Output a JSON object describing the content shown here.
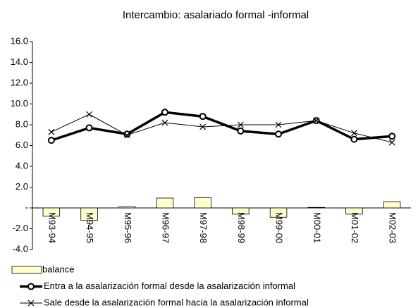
{
  "chart_data": {
    "type": "combo",
    "title": "Intercambio: asalariado formal -informal",
    "categories": [
      "M93-94",
      "M94-95",
      "M95-96",
      "M96-97",
      "M97-98",
      "M98-99",
      "M99-00",
      "M00-01",
      "M01-02",
      "M02-03"
    ],
    "series": [
      {
        "name": "balance",
        "type": "bar",
        "color": "#ffffcc",
        "values": [
          -0.8,
          -1.2,
          0.1,
          0.95,
          1.0,
          -0.6,
          -0.9,
          0.05,
          -0.6,
          0.6
        ]
      },
      {
        "name": "Entra a la asalarización formal desde la asalarización informal",
        "type": "line",
        "marker": "circle",
        "line_width": 3.5,
        "color": "#000000",
        "values": [
          6.5,
          7.7,
          7.1,
          9.2,
          8.8,
          7.4,
          7.1,
          8.4,
          6.6,
          6.9
        ]
      },
      {
        "name": "Sale desde la asalarización formal hacia la asalarización informal",
        "type": "line",
        "marker": "x",
        "line_width": 1,
        "color": "#000000",
        "values": [
          7.3,
          9.0,
          7.0,
          8.2,
          7.8,
          8.0,
          8.0,
          8.4,
          7.2,
          6.3
        ]
      }
    ],
    "ylim": [
      -4,
      16
    ],
    "yticks": [
      {
        "value": -4,
        "label": "-4.0"
      },
      {
        "value": -2,
        "label": "-2.0"
      },
      {
        "value": 0,
        "label": "-"
      },
      {
        "value": 2,
        "label": "2.0"
      },
      {
        "value": 4,
        "label": "4.0"
      },
      {
        "value": 6,
        "label": "6.0"
      },
      {
        "value": 8,
        "label": "8.0"
      },
      {
        "value": 10,
        "label": "10.0"
      },
      {
        "value": 12,
        "label": "12.0"
      },
      {
        "value": 14,
        "label": "14.0"
      },
      {
        "value": 16,
        "label": "16.0"
      }
    ]
  }
}
